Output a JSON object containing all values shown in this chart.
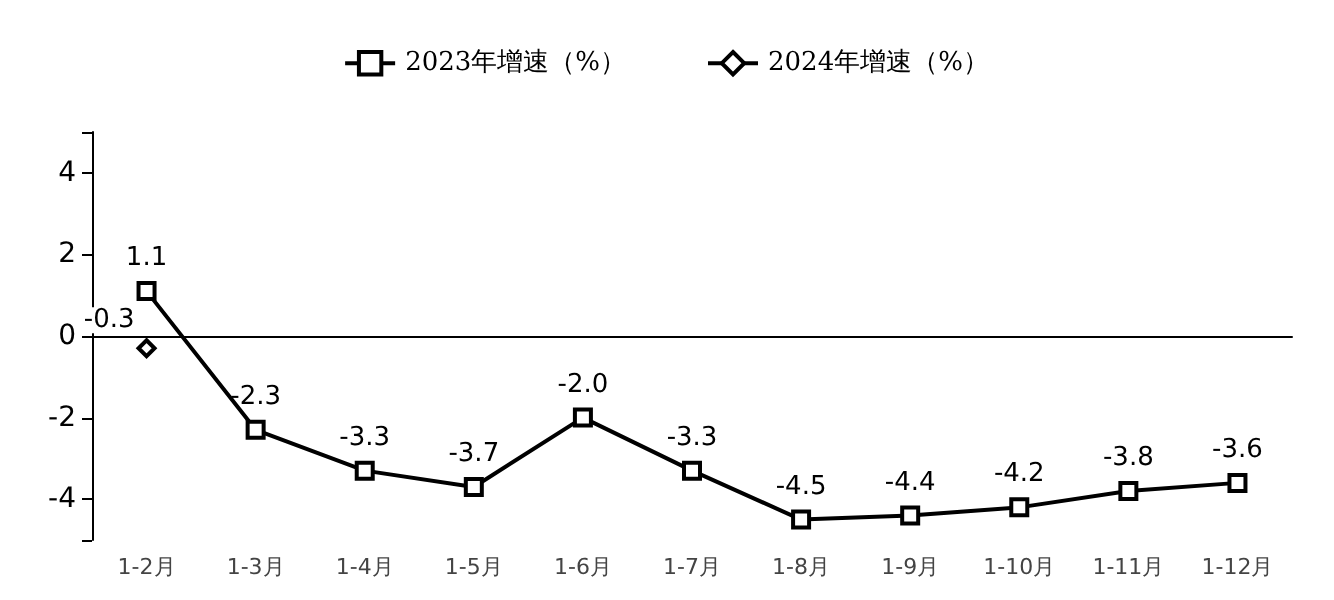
{
  "chart_data": {
    "type": "line",
    "categories": [
      "1-2月",
      "1-3月",
      "1-4月",
      "1-5月",
      "1-6月",
      "1-7月",
      "1-8月",
      "1-9月",
      "1-10月",
      "1-11月",
      "1-12月"
    ],
    "series": [
      {
        "name": "2023年增速（%）",
        "color": "#000000",
        "marker": "square",
        "values": [
          1.1,
          -2.3,
          -3.3,
          -3.7,
          -2.0,
          -3.3,
          -4.5,
          -4.4,
          -4.2,
          -3.8,
          -3.6
        ],
        "value_labels": [
          "1.1",
          "-2.3",
          "-3.3",
          "-3.7",
          "-2.0",
          "-3.3",
          "-4.5",
          "-4.4",
          "-4.2",
          "-3.8",
          "-3.6"
        ]
      },
      {
        "name": "2024年增速（%）",
        "color": "#000000",
        "marker": "diamond",
        "values": [
          -0.3,
          null,
          null,
          null,
          null,
          null,
          null,
          null,
          null,
          null,
          null
        ],
        "value_labels": [
          "-0.3",
          null,
          null,
          null,
          null,
          null,
          null,
          null,
          null,
          null,
          null
        ]
      }
    ],
    "ylim": [
      -5,
      5
    ],
    "yticks": [
      {
        "value": -5,
        "label": null
      },
      -4,
      -2,
      0,
      2,
      4,
      {
        "value": 5,
        "label": null
      }
    ],
    "grid": false,
    "legend": "top",
    "line_style": "solid"
  }
}
